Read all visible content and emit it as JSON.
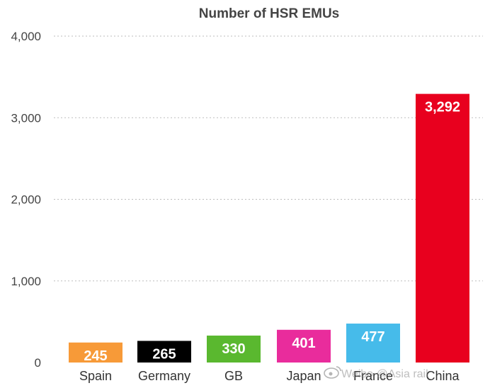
{
  "chart_data": {
    "type": "bar",
    "title": "Number of HSR EMUs",
    "xlabel": "",
    "ylabel": "",
    "categories": [
      "Spain",
      "Germany",
      "GB",
      "Japan",
      "France",
      "China"
    ],
    "values": [
      245,
      265,
      330,
      401,
      477,
      3292
    ],
    "data_labels": [
      "245",
      "265",
      "330",
      "401",
      "477",
      "3,292"
    ],
    "colors": [
      "#f79a38",
      "#000000",
      "#5ab82f",
      "#e92c9c",
      "#46bbea",
      "#e8001e"
    ],
    "ylim": [
      0,
      4000
    ],
    "yticks": [
      0,
      1000,
      2000,
      3000,
      4000
    ],
    "ytick_labels": [
      "0",
      "1,000",
      "2,000",
      "3,000",
      "4,000"
    ],
    "grid": true,
    "legend": "none"
  },
  "watermark": "Weibo @Asia rail"
}
